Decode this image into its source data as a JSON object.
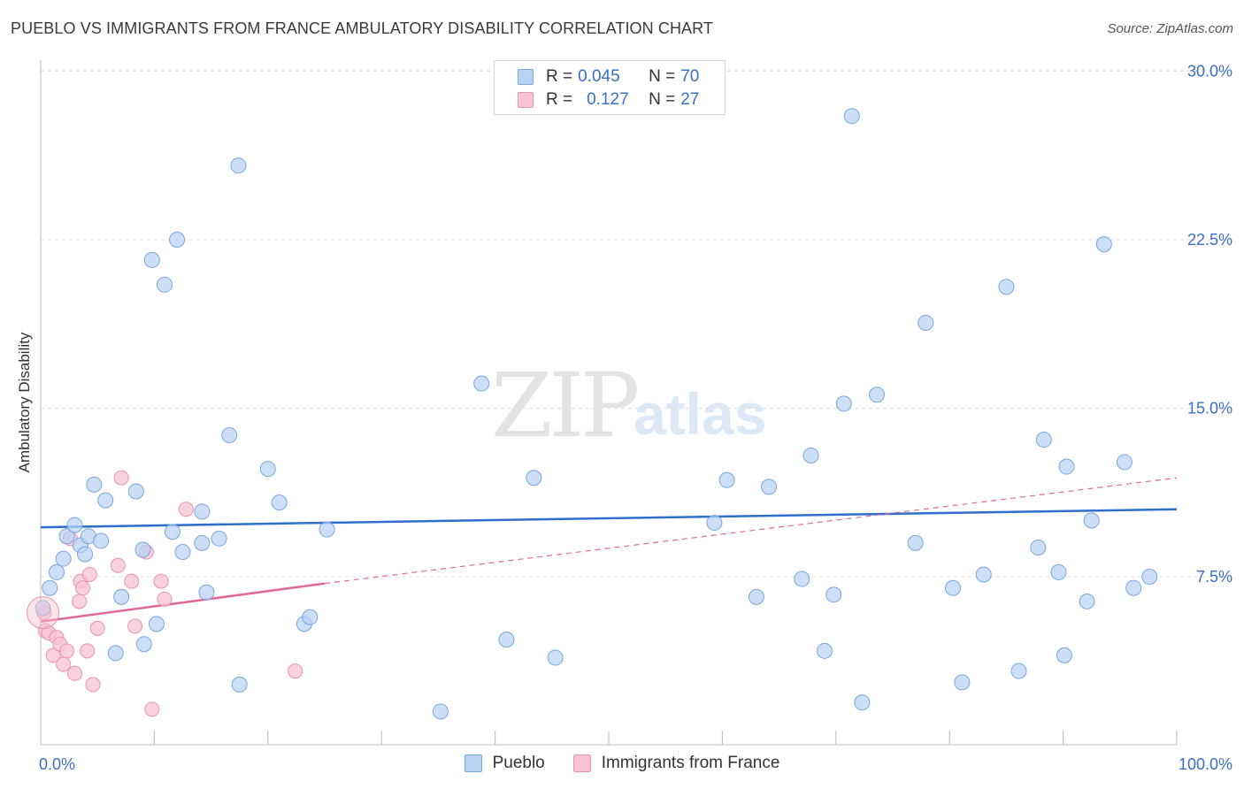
{
  "title": "PUEBLO VS IMMIGRANTS FROM FRANCE AMBULATORY DISABILITY CORRELATION CHART",
  "source": "Source: ZipAtlas.com",
  "watermark": {
    "zip": "ZIP",
    "atlas": "atlas"
  },
  "legend_top": {
    "rows": [
      {
        "r_label": "R = ",
        "r_value": "0.045",
        "n_label": "N = ",
        "n_value": "70"
      },
      {
        "r_label": "R = ",
        "r_value": "0.127",
        "n_label": "N = ",
        "n_value": "27"
      }
    ]
  },
  "bottom_legend": {
    "series1": "Pueblo",
    "series2": "Immigrants from France"
  },
  "colors": {
    "pueblo_fill": "#b8d2f3",
    "pueblo_stroke": "#7aa6de",
    "pueblo_line": "#2d6fcb",
    "france_fill": "#f8c3d3",
    "france_stroke": "#ea93b0",
    "france_line": "#e0699a",
    "tick_label": "#3a6fc4",
    "grid": "#e2e2e2"
  },
  "chart_data": {
    "type": "scatter",
    "title": "PUEBLO VS IMMIGRANTS FROM FRANCE AMBULATORY DISABILITY CORRELATION CHART",
    "xlabel": "",
    "ylabel": "Ambulatory Disability",
    "xlim": [
      0,
      100
    ],
    "ylim": [
      0,
      31.2
    ],
    "x_tick_labels": [
      "0.0%",
      "100.0%"
    ],
    "y_ticks": [
      7.5,
      15.0,
      22.5,
      30.0
    ],
    "y_tick_labels": [
      "7.5%",
      "15.0%",
      "22.5%",
      "30.0%"
    ],
    "grid": "horizontal dashed",
    "legend_position": "top-center",
    "series": [
      {
        "name": "Pueblo",
        "R": 0.045,
        "N": 70,
        "trend": {
          "x": [
            0,
            100
          ],
          "y": [
            9.7,
            10.5
          ]
        },
        "points": [
          [
            0.2,
            6.1
          ],
          [
            0.8,
            7.0
          ],
          [
            1.4,
            7.7
          ],
          [
            2.0,
            8.3
          ],
          [
            2.3,
            9.3
          ],
          [
            3.0,
            9.8
          ],
          [
            3.5,
            8.9
          ],
          [
            3.9,
            8.5
          ],
          [
            4.2,
            9.3
          ],
          [
            5.3,
            9.1
          ],
          [
            4.7,
            11.6
          ],
          [
            5.7,
            10.9
          ],
          [
            6.6,
            4.1
          ],
          [
            7.1,
            6.6
          ],
          [
            8.4,
            11.3
          ],
          [
            9.0,
            8.7
          ],
          [
            9.1,
            4.5
          ],
          [
            10.2,
            5.4
          ],
          [
            9.8,
            21.6
          ],
          [
            10.9,
            20.5
          ],
          [
            11.6,
            9.5
          ],
          [
            12.0,
            22.5
          ],
          [
            12.5,
            8.6
          ],
          [
            14.2,
            9.0
          ],
          [
            14.2,
            10.4
          ],
          [
            14.6,
            6.8
          ],
          [
            15.7,
            9.2
          ],
          [
            16.6,
            13.8
          ],
          [
            17.4,
            25.8
          ],
          [
            17.5,
            2.7
          ],
          [
            20.0,
            12.3
          ],
          [
            21.0,
            10.8
          ],
          [
            23.2,
            5.4
          ],
          [
            23.7,
            5.7
          ],
          [
            25.2,
            9.6
          ],
          [
            35.2,
            1.5
          ],
          [
            38.8,
            16.1
          ],
          [
            41.0,
            4.7
          ],
          [
            43.4,
            11.9
          ],
          [
            45.3,
            3.9
          ],
          [
            59.3,
            9.9
          ],
          [
            60.4,
            11.8
          ],
          [
            63.0,
            6.6
          ],
          [
            64.1,
            11.5
          ],
          [
            67.0,
            7.4
          ],
          [
            67.8,
            12.9
          ],
          [
            69.0,
            4.2
          ],
          [
            69.8,
            6.7
          ],
          [
            70.7,
            15.2
          ],
          [
            71.4,
            28.0
          ],
          [
            72.3,
            1.9
          ],
          [
            73.6,
            15.6
          ],
          [
            77.0,
            9.0
          ],
          [
            77.9,
            18.8
          ],
          [
            80.3,
            7.0
          ],
          [
            81.1,
            2.8
          ],
          [
            83.0,
            7.6
          ],
          [
            85.0,
            20.4
          ],
          [
            86.1,
            3.3
          ],
          [
            87.8,
            8.8
          ],
          [
            88.3,
            13.6
          ],
          [
            89.6,
            7.7
          ],
          [
            90.1,
            4.0
          ],
          [
            90.3,
            12.4
          ],
          [
            92.1,
            6.4
          ],
          [
            92.5,
            10.0
          ],
          [
            93.6,
            22.3
          ],
          [
            95.4,
            12.6
          ],
          [
            96.2,
            7.0
          ],
          [
            97.6,
            7.5
          ]
        ]
      },
      {
        "name": "Immigrants from France",
        "R": 0.127,
        "N": 27,
        "trend_solid": {
          "x": [
            0,
            25
          ],
          "y": [
            5.5,
            7.2
          ]
        },
        "trend_dashed": {
          "x": [
            25,
            100
          ],
          "y": [
            7.2,
            11.9
          ]
        },
        "points": [
          [
            0.3,
            5.9
          ],
          [
            0.4,
            5.1
          ],
          [
            0.7,
            5.0
          ],
          [
            1.1,
            4.0
          ],
          [
            1.4,
            4.8
          ],
          [
            1.7,
            4.5
          ],
          [
            2.0,
            3.6
          ],
          [
            2.3,
            4.2
          ],
          [
            2.6,
            9.2
          ],
          [
            3.0,
            3.2
          ],
          [
            3.4,
            6.4
          ],
          [
            3.5,
            7.3
          ],
          [
            3.7,
            7.0
          ],
          [
            4.1,
            4.2
          ],
          [
            4.3,
            7.6
          ],
          [
            4.6,
            2.7
          ],
          [
            5.0,
            5.2
          ],
          [
            6.8,
            8.0
          ],
          [
            7.1,
            11.9
          ],
          [
            8.0,
            7.3
          ],
          [
            8.3,
            5.3
          ],
          [
            9.3,
            8.6
          ],
          [
            9.8,
            1.6
          ],
          [
            10.6,
            7.3
          ],
          [
            10.9,
            6.5
          ],
          [
            12.8,
            10.5
          ],
          [
            22.4,
            3.3
          ]
        ]
      }
    ]
  }
}
